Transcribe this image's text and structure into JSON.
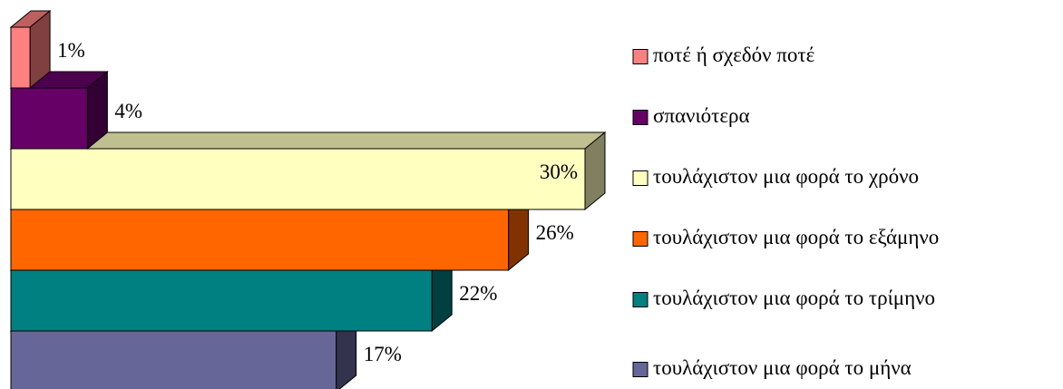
{
  "chart_data": {
    "type": "bar3d_horizontal",
    "series": [
      {
        "name": "ποτέ ή σχεδόν ποτέ",
        "color": "#ff8080",
        "values": [
          1
        ],
        "value_labels": [
          "1%"
        ]
      },
      {
        "name": "σπανιότερα",
        "color": "#660066",
        "values": [
          4
        ],
        "value_labels": [
          "4%"
        ]
      },
      {
        "name": "τουλάχιστον μια φορά το χρόνο",
        "color": "#ffffc0",
        "values": [
          30
        ],
        "value_labels": [
          "30%"
        ]
      },
      {
        "name": "τουλάχιστον μια φορά το εξάμηνο",
        "color": "#ff6600",
        "values": [
          26
        ],
        "value_labels": [
          "26%"
        ]
      },
      {
        "name": "τουλάχιστον μια φορά το τρίμηνο",
        "color": "#008080",
        "values": [
          22
        ],
        "value_labels": [
          "22%"
        ]
      },
      {
        "name": "τουλάχιστον μια φορά το μήνα",
        "color": "#666699",
        "values": [
          17
        ],
        "value_labels": [
          "17%"
        ]
      }
    ]
  }
}
